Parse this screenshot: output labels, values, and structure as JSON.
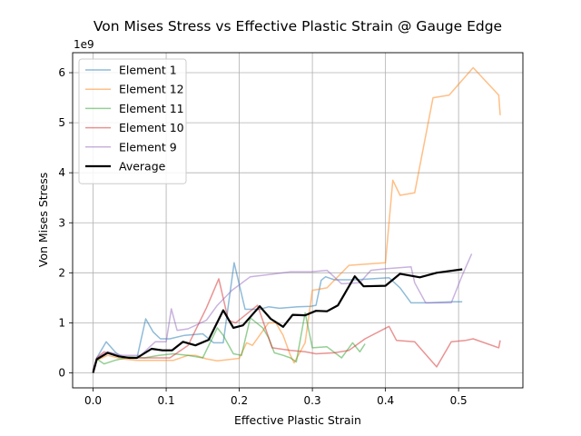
{
  "chart_data": {
    "type": "line",
    "title": "Von Mises Stress vs Effective Plastic Strain @ Gauge Edge",
    "xlabel": "Effective Plastic Strain",
    "ylabel": "Von Mises Stress",
    "y_offset_label": "1e9",
    "xlim": [
      -0.028,
      0.588
    ],
    "ylim": [
      -0.3,
      6.4
    ],
    "x_ticks": [
      0.0,
      0.1,
      0.2,
      0.3,
      0.4,
      0.5
    ],
    "x_tick_labels": [
      "0.0",
      "0.1",
      "0.2",
      "0.3",
      "0.4",
      "0.5"
    ],
    "y_ticks": [
      0,
      1,
      2,
      3,
      4,
      5,
      6
    ],
    "y_tick_labels": [
      "0",
      "1",
      "2",
      "3",
      "4",
      "5",
      "6"
    ],
    "grid": true,
    "legend_position": "upper-left",
    "series": [
      {
        "name": "Element 1",
        "color": "#1f77b4",
        "alpha": 0.5,
        "width": 1.5,
        "points": [
          [
            0.0,
            0.05
          ],
          [
            0.005,
            0.3
          ],
          [
            0.018,
            0.62
          ],
          [
            0.03,
            0.42
          ],
          [
            0.04,
            0.3
          ],
          [
            0.06,
            0.3
          ],
          [
            0.072,
            1.08
          ],
          [
            0.082,
            0.82
          ],
          [
            0.092,
            0.68
          ],
          [
            0.105,
            0.68
          ],
          [
            0.125,
            0.75
          ],
          [
            0.15,
            0.78
          ],
          [
            0.165,
            0.6
          ],
          [
            0.178,
            0.6
          ],
          [
            0.193,
            2.2
          ],
          [
            0.208,
            1.27
          ],
          [
            0.228,
            1.27
          ],
          [
            0.24,
            1.32
          ],
          [
            0.255,
            1.29
          ],
          [
            0.28,
            1.32
          ],
          [
            0.298,
            1.33
          ],
          [
            0.305,
            1.35
          ],
          [
            0.312,
            1.85
          ],
          [
            0.318,
            1.92
          ],
          [
            0.33,
            1.86
          ],
          [
            0.36,
            1.86
          ],
          [
            0.405,
            1.9
          ],
          [
            0.42,
            1.7
          ],
          [
            0.435,
            1.4
          ],
          [
            0.46,
            1.4
          ],
          [
            0.49,
            1.42
          ],
          [
            0.505,
            1.42
          ]
        ]
      },
      {
        "name": "Element 12",
        "color": "#ff7f0e",
        "alpha": 0.5,
        "width": 1.5,
        "points": [
          [
            0.0,
            0.05
          ],
          [
            0.005,
            0.25
          ],
          [
            0.02,
            0.35
          ],
          [
            0.04,
            0.28
          ],
          [
            0.06,
            0.25
          ],
          [
            0.09,
            0.25
          ],
          [
            0.11,
            0.25
          ],
          [
            0.13,
            0.35
          ],
          [
            0.14,
            0.35
          ],
          [
            0.155,
            0.28
          ],
          [
            0.17,
            0.24
          ],
          [
            0.2,
            0.29
          ],
          [
            0.21,
            0.6
          ],
          [
            0.218,
            0.55
          ],
          [
            0.24,
            1.0
          ],
          [
            0.25,
            1.0
          ],
          [
            0.26,
            0.75
          ],
          [
            0.27,
            0.35
          ],
          [
            0.275,
            0.2
          ],
          [
            0.29,
            0.6
          ],
          [
            0.3,
            1.65
          ],
          [
            0.32,
            1.7
          ],
          [
            0.35,
            2.15
          ],
          [
            0.4,
            2.2
          ],
          [
            0.41,
            3.85
          ],
          [
            0.42,
            3.55
          ],
          [
            0.44,
            3.6
          ],
          [
            0.465,
            5.5
          ],
          [
            0.487,
            5.55
          ],
          [
            0.52,
            6.1
          ],
          [
            0.555,
            5.55
          ],
          [
            0.557,
            5.15
          ]
        ]
      },
      {
        "name": "Element 11",
        "color": "#2ca02c",
        "alpha": 0.5,
        "width": 1.5,
        "points": [
          [
            0.0,
            0.05
          ],
          [
            0.005,
            0.28
          ],
          [
            0.015,
            0.18
          ],
          [
            0.03,
            0.25
          ],
          [
            0.05,
            0.32
          ],
          [
            0.07,
            0.3
          ],
          [
            0.09,
            0.35
          ],
          [
            0.11,
            0.38
          ],
          [
            0.13,
            0.35
          ],
          [
            0.15,
            0.3
          ],
          [
            0.17,
            0.9
          ],
          [
            0.178,
            0.75
          ],
          [
            0.192,
            0.38
          ],
          [
            0.203,
            0.35
          ],
          [
            0.215,
            1.1
          ],
          [
            0.232,
            0.9
          ],
          [
            0.24,
            0.7
          ],
          [
            0.248,
            0.4
          ],
          [
            0.26,
            0.35
          ],
          [
            0.27,
            0.3
          ],
          [
            0.278,
            0.22
          ],
          [
            0.29,
            1.2
          ],
          [
            0.3,
            0.5
          ],
          [
            0.32,
            0.52
          ],
          [
            0.34,
            0.3
          ],
          [
            0.355,
            0.6
          ],
          [
            0.365,
            0.42
          ],
          [
            0.372,
            0.58
          ]
        ]
      },
      {
        "name": "Element 10",
        "color": "#d62728",
        "alpha": 0.5,
        "width": 1.5,
        "points": [
          [
            0.0,
            0.05
          ],
          [
            0.005,
            0.3
          ],
          [
            0.015,
            0.42
          ],
          [
            0.03,
            0.35
          ],
          [
            0.05,
            0.3
          ],
          [
            0.07,
            0.3
          ],
          [
            0.09,
            0.3
          ],
          [
            0.105,
            0.3
          ],
          [
            0.13,
            0.55
          ],
          [
            0.155,
            1.3
          ],
          [
            0.172,
            1.88
          ],
          [
            0.185,
            1.05
          ],
          [
            0.195,
            1.0
          ],
          [
            0.225,
            1.35
          ],
          [
            0.245,
            0.5
          ],
          [
            0.27,
            0.45
          ],
          [
            0.29,
            0.42
          ],
          [
            0.305,
            0.38
          ],
          [
            0.33,
            0.4
          ],
          [
            0.35,
            0.45
          ],
          [
            0.372,
            0.68
          ],
          [
            0.405,
            0.93
          ],
          [
            0.415,
            0.65
          ],
          [
            0.44,
            0.62
          ],
          [
            0.47,
            0.12
          ],
          [
            0.49,
            0.62
          ],
          [
            0.51,
            0.65
          ],
          [
            0.52,
            0.68
          ],
          [
            0.555,
            0.5
          ],
          [
            0.557,
            0.65
          ]
        ]
      },
      {
        "name": "Element 9",
        "color": "#9467bd",
        "alpha": 0.5,
        "width": 1.5,
        "points": [
          [
            0.0,
            0.05
          ],
          [
            0.005,
            0.3
          ],
          [
            0.02,
            0.42
          ],
          [
            0.04,
            0.35
          ],
          [
            0.065,
            0.35
          ],
          [
            0.085,
            0.62
          ],
          [
            0.1,
            0.62
          ],
          [
            0.107,
            1.28
          ],
          [
            0.115,
            0.85
          ],
          [
            0.13,
            0.88
          ],
          [
            0.155,
            1.05
          ],
          [
            0.17,
            1.35
          ],
          [
            0.19,
            1.65
          ],
          [
            0.215,
            1.92
          ],
          [
            0.25,
            1.98
          ],
          [
            0.27,
            2.02
          ],
          [
            0.298,
            2.02
          ],
          [
            0.32,
            2.05
          ],
          [
            0.34,
            1.78
          ],
          [
            0.365,
            1.8
          ],
          [
            0.38,
            2.05
          ],
          [
            0.4,
            2.08
          ],
          [
            0.435,
            2.12
          ],
          [
            0.44,
            1.8
          ],
          [
            0.455,
            1.4
          ],
          [
            0.49,
            1.4
          ],
          [
            0.505,
            1.95
          ],
          [
            0.518,
            2.38
          ]
        ]
      },
      {
        "name": "Average",
        "color": "#000000",
        "alpha": 1.0,
        "width": 2.2,
        "points": [
          [
            0.0,
            0.0
          ],
          [
            0.005,
            0.27
          ],
          [
            0.02,
            0.4
          ],
          [
            0.035,
            0.33
          ],
          [
            0.05,
            0.3
          ],
          [
            0.06,
            0.3
          ],
          [
            0.08,
            0.48
          ],
          [
            0.095,
            0.45
          ],
          [
            0.108,
            0.45
          ],
          [
            0.123,
            0.62
          ],
          [
            0.14,
            0.55
          ],
          [
            0.158,
            0.66
          ],
          [
            0.178,
            1.25
          ],
          [
            0.192,
            0.9
          ],
          [
            0.205,
            0.95
          ],
          [
            0.228,
            1.33
          ],
          [
            0.243,
            1.08
          ],
          [
            0.26,
            0.92
          ],
          [
            0.273,
            1.16
          ],
          [
            0.29,
            1.15
          ],
          [
            0.305,
            1.24
          ],
          [
            0.32,
            1.23
          ],
          [
            0.335,
            1.35
          ],
          [
            0.358,
            1.93
          ],
          [
            0.37,
            1.73
          ],
          [
            0.4,
            1.74
          ],
          [
            0.42,
            1.98
          ],
          [
            0.447,
            1.91
          ],
          [
            0.47,
            2.0
          ],
          [
            0.505,
            2.07
          ]
        ]
      }
    ]
  }
}
